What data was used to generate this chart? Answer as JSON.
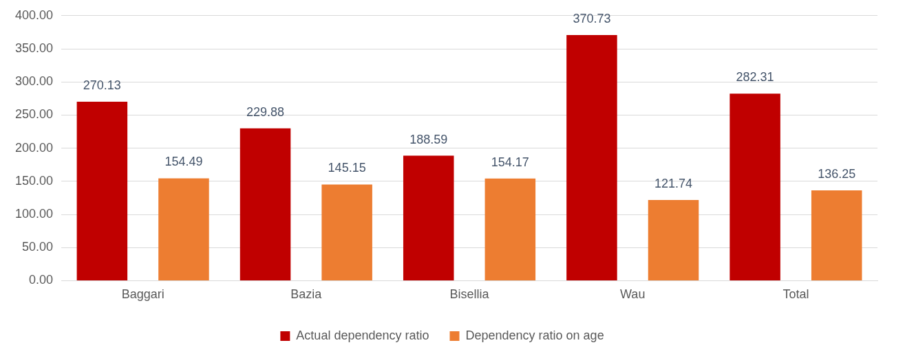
{
  "chart_data": {
    "type": "bar",
    "categories": [
      "Baggari",
      "Bazia",
      "Bisellia",
      "Wau",
      "Total"
    ],
    "series": [
      {
        "name": "Actual dependency ratio",
        "color": "#c00000",
        "values": [
          270.13,
          229.88,
          188.59,
          370.73,
          282.31
        ]
      },
      {
        "name": "Dependency ratio on age",
        "color": "#ed7d31",
        "values": [
          154.49,
          145.15,
          154.17,
          121.74,
          136.25
        ]
      }
    ],
    "ylim": [
      0,
      400
    ],
    "yticks": [
      {
        "value": 0,
        "label": "0.00"
      },
      {
        "value": 50,
        "label": "50.00"
      },
      {
        "value": 100,
        "label": "100.00"
      },
      {
        "value": 150,
        "label": "150.00"
      },
      {
        "value": 200,
        "label": "200.00"
      },
      {
        "value": 250,
        "label": "250.00"
      },
      {
        "value": 300,
        "label": "300.00"
      },
      {
        "value": 350,
        "label": "350.00"
      },
      {
        "value": 400,
        "label": "400.00"
      }
    ],
    "grid": "y",
    "legend": "bottom",
    "data_labels": true
  }
}
